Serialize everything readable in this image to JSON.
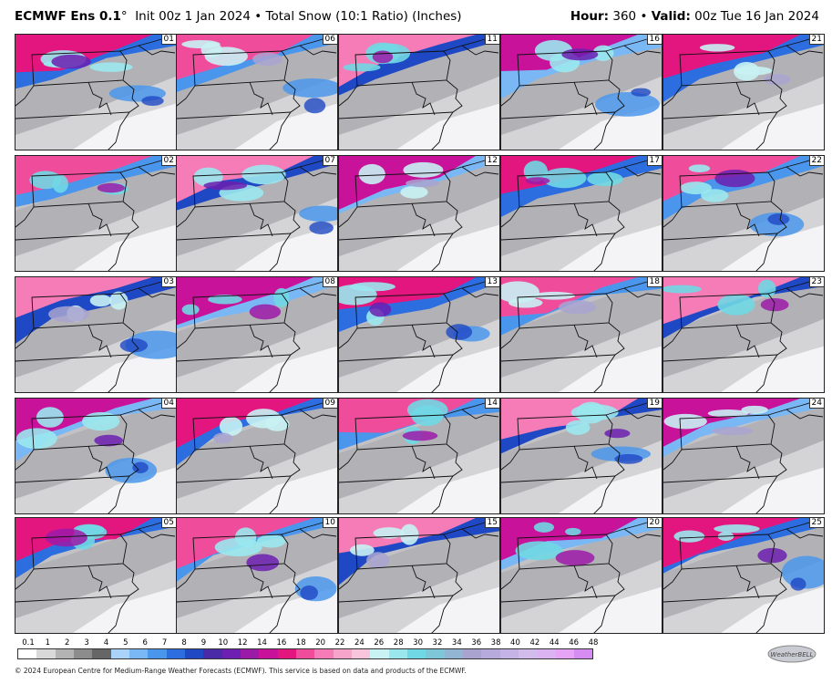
{
  "header": {
    "model": "ECMWF Ens 0.1",
    "degree": "°",
    "init": "Init 00z 1 Jan 2024",
    "separator": "•",
    "product": "Total Snow (10:1 Ratio) (Inches)",
    "hour_label": "Hour:",
    "hour_value": "360",
    "valid_label": "Valid:",
    "valid_value": "00z Tue 16 Jan 2024"
  },
  "members": [
    "01",
    "02",
    "03",
    "04",
    "05",
    "06",
    "07",
    "08",
    "09",
    "10",
    "11",
    "12",
    "13",
    "14",
    "15",
    "16",
    "17",
    "18",
    "19",
    "20",
    "21",
    "22",
    "23",
    "24",
    "25"
  ],
  "scale": {
    "ticks": [
      "0.1",
      "1",
      "2",
      "3",
      "4",
      "5",
      "6",
      "7",
      "8",
      "9",
      "10",
      "12",
      "14",
      "16",
      "18",
      "20",
      "22",
      "24",
      "26",
      "28",
      "30",
      "32",
      "34",
      "36",
      "38",
      "40",
      "42",
      "44",
      "46",
      "48"
    ],
    "colors": [
      "#ffffff",
      "#d9d9d9",
      "#b3b3b3",
      "#8c8c8c",
      "#666666",
      "#a9d3f8",
      "#7ab8f5",
      "#4a96ec",
      "#2c6ee0",
      "#1f49c4",
      "#4a2aa6",
      "#6c1fb0",
      "#9c1aa8",
      "#c8129a",
      "#e2167e",
      "#f04c9c",
      "#f57cb7",
      "#f7a4cb",
      "#f8c5dd",
      "#c8f2f4",
      "#9ae8ee",
      "#70d8e4",
      "#7ec7d9",
      "#93b5d4",
      "#a9a3d0",
      "#b6a9db",
      "#c4b3e4",
      "#d2bcec",
      "#dcb3f2",
      "#e6a4f6",
      "#d78cf2"
    ]
  },
  "footer": "© 2024 European Centre for Medium-Range Weather Forecasts (ECMWF). This service is based on data and products of the ECMWF.",
  "logo": {
    "text": "WeatherBELL"
  }
}
